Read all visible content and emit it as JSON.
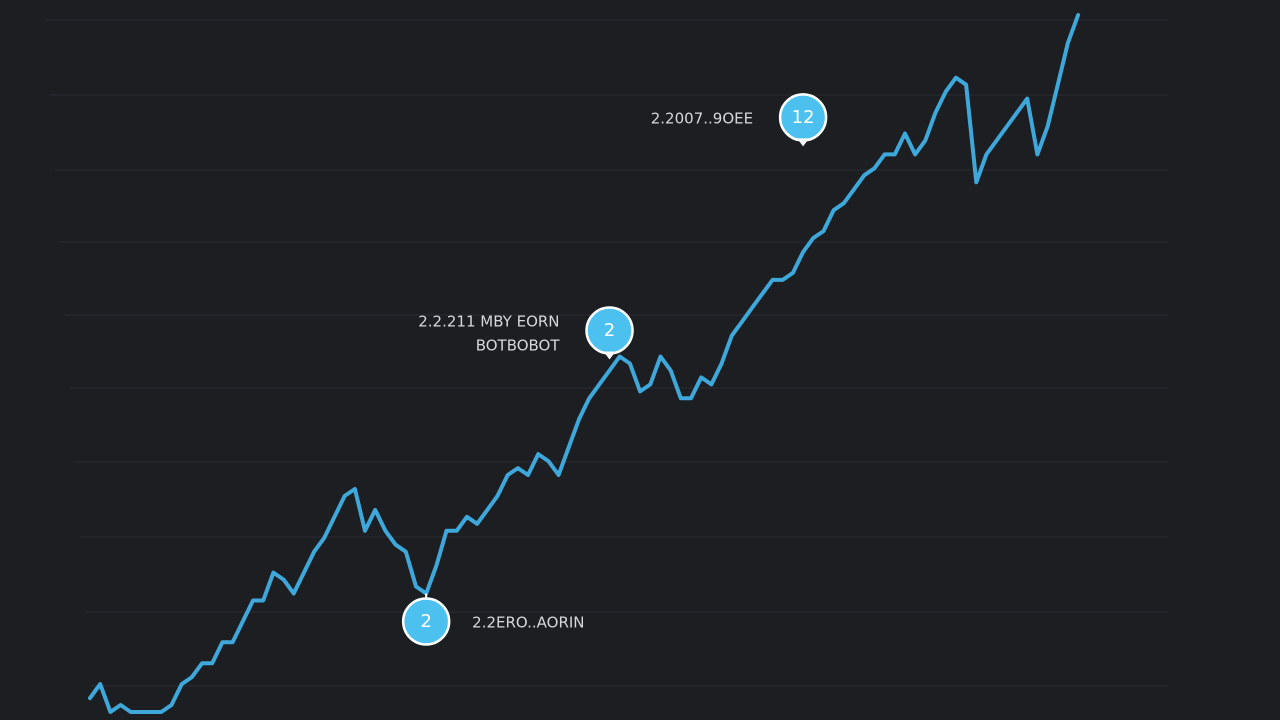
{
  "chart_data": {
    "type": "line",
    "title": "",
    "xlabel": "",
    "ylabel": "",
    "grid": true,
    "legend": "none",
    "colors": {
      "background": "#1c1e22",
      "line": "#3ea8db",
      "marker": "#4cc1ef",
      "gridline": "#2a2c31",
      "text": "#d6d8dc"
    },
    "xlim": [
      0,
      107
    ],
    "ylim": [
      0,
      100
    ],
    "x": [
      0,
      1,
      2,
      3,
      4,
      5,
      6,
      7,
      8,
      9,
      10,
      11,
      12,
      13,
      14,
      15,
      16,
      17,
      18,
      19,
      20,
      21,
      22,
      23,
      24,
      25,
      26,
      27,
      28,
      29,
      30,
      31,
      32,
      33,
      34,
      35,
      36,
      37,
      38,
      39,
      40,
      41,
      42,
      43,
      44,
      45,
      46,
      47,
      48,
      49,
      50,
      51,
      52,
      53,
      54,
      55,
      56,
      57,
      58,
      59,
      60,
      61,
      62,
      63,
      64,
      65,
      66,
      67,
      68,
      69,
      70,
      71,
      72,
      73,
      74,
      75,
      76,
      77,
      78,
      79,
      80,
      81,
      82,
      83,
      84,
      85,
      86,
      87,
      88,
      89,
      90,
      91,
      92,
      93,
      94,
      95,
      96,
      97
    ],
    "series": [
      {
        "values": [
          2,
          4,
          0,
          1,
          0,
          0,
          0,
          0,
          1,
          4,
          5,
          7,
          7,
          10,
          10,
          13,
          16,
          16,
          20,
          19,
          17,
          20,
          23,
          25,
          28,
          31,
          32,
          26,
          29,
          26,
          24,
          23,
          18,
          17,
          21,
          26,
          26,
          28,
          27,
          29,
          31,
          34,
          35,
          34,
          37,
          36,
          34,
          38,
          42,
          45,
          47,
          49,
          51,
          50,
          46,
          47,
          51,
          49,
          45,
          45,
          48,
          47,
          50,
          54,
          56,
          58,
          60,
          62,
          62,
          63,
          66,
          68,
          69,
          72,
          73,
          75,
          77,
          78,
          80,
          80,
          83,
          80,
          82,
          86,
          89,
          91,
          90,
          76,
          80,
          82,
          84,
          86,
          88,
          80,
          84,
          90,
          96,
          100
        ]
      }
    ],
    "annotations": [
      {
        "marker": "2",
        "label": "2.2ERO..AORIN",
        "x": 33,
        "y": 17
      },
      {
        "marker": "2",
        "label_lines": [
          "2.2.211 MBY EORN",
          "BOTBOBOT"
        ],
        "x": 51,
        "y": 51
      },
      {
        "marker": "12",
        "label": "2.2007..9OEE",
        "x": 70,
        "y": 81
      }
    ]
  }
}
